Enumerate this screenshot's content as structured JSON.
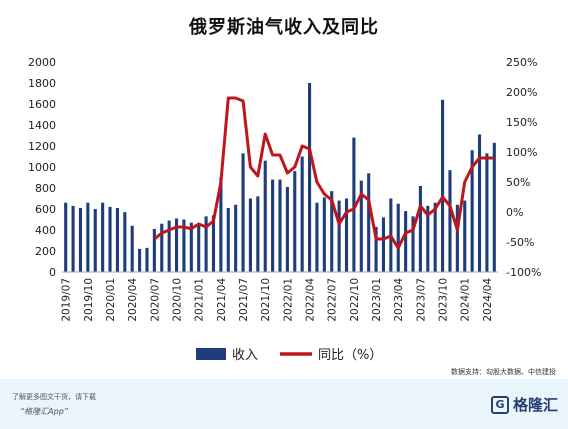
{
  "chart_data": {
    "type": "bar",
    "title": "俄罗斯油气收入及同比",
    "x_labels": [
      "2019/07",
      "2019/10",
      "2020/01",
      "2020/04",
      "2020/07",
      "2020/10",
      "2021/01",
      "2021/04",
      "2021/07",
      "2021/10",
      "2022/01",
      "2022/04",
      "2022/07",
      "2022/10",
      "2023/01",
      "2023/04",
      "2023/07",
      "2023/10",
      "2024/01",
      "2024/04"
    ],
    "months": [
      "2019/07",
      "2019/08",
      "2019/09",
      "2019/10",
      "2019/11",
      "2019/12",
      "2020/01",
      "2020/02",
      "2020/03",
      "2020/04",
      "2020/05",
      "2020/06",
      "2020/07",
      "2020/08",
      "2020/09",
      "2020/10",
      "2020/11",
      "2020/12",
      "2021/01",
      "2021/02",
      "2021/03",
      "2021/04",
      "2021/05",
      "2021/06",
      "2021/07",
      "2021/08",
      "2021/09",
      "2021/10",
      "2021/11",
      "2021/12",
      "2022/01",
      "2022/02",
      "2022/03",
      "2022/04",
      "2022/05",
      "2022/06",
      "2022/07",
      "2022/08",
      "2022/09",
      "2022/10",
      "2022/11",
      "2022/12",
      "2023/01",
      "2023/02",
      "2023/03",
      "2023/04",
      "2023/05",
      "2023/06",
      "2023/07",
      "2023/08",
      "2023/09",
      "2023/10",
      "2023/11",
      "2023/12",
      "2024/01",
      "2024/02",
      "2024/03",
      "2024/04",
      "2024/05"
    ],
    "series": [
      {
        "name": "收入",
        "axis": "left",
        "color": "#1f3d7a",
        "values": [
          660,
          630,
          610,
          660,
          600,
          660,
          620,
          610,
          570,
          440,
          220,
          230,
          410,
          460,
          490,
          510,
          500,
          470,
          450,
          530,
          540,
          900,
          610,
          640,
          1130,
          700,
          720,
          1060,
          880,
          880,
          810,
          960,
          1100,
          1800,
          660,
          710,
          770,
          680,
          700,
          1280,
          870,
          940,
          430,
          520,
          700,
          650,
          580,
          530,
          820,
          630,
          660,
          1640,
          970,
          640,
          680,
          1160,
          1310,
          1130,
          1230
        ]
      },
      {
        "name": "同比（%）",
        "axis": "right",
        "color": "#c0151b",
        "values": [
          null,
          null,
          null,
          null,
          null,
          null,
          null,
          null,
          null,
          null,
          null,
          null,
          -45,
          -35,
          -30,
          -25,
          -25,
          -28,
          -20,
          -25,
          -15,
          50,
          190,
          190,
          185,
          75,
          60,
          130,
          95,
          95,
          65,
          75,
          110,
          105,
          50,
          30,
          20,
          -20,
          0,
          5,
          30,
          20,
          -45,
          -45,
          -40,
          -60,
          -35,
          -30,
          10,
          -5,
          5,
          25,
          10,
          -30,
          50,
          75,
          90,
          90,
          90
        ]
      }
    ],
    "yleft": {
      "min": 0,
      "max": 2000,
      "ticks": [
        0,
        200,
        400,
        600,
        800,
        1000,
        1200,
        1400,
        1600,
        1800,
        2000
      ]
    },
    "yright": {
      "min": -100,
      "max": 250,
      "ticks": [
        "-100%",
        "-50%",
        "0%",
        "50%",
        "100%",
        "150%",
        "200%",
        "250%"
      ]
    },
    "legend": [
      {
        "label": "收入",
        "type": "bar",
        "color": "#1f3d7a"
      },
      {
        "label": "同比（%）",
        "type": "line",
        "color": "#c0151b"
      }
    ],
    "legend_position": "bottom",
    "grid": false
  },
  "source": "数据支持：勾股大数据、中信建投",
  "footer": {
    "line1": "了解更多图文干货，请下载",
    "line2": "“格隆汇App”",
    "logo_text": "格隆汇"
  }
}
